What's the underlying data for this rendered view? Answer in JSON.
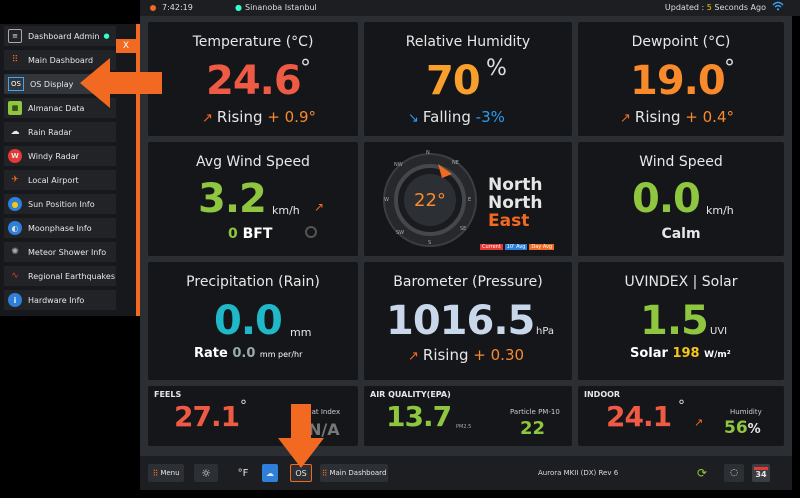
{
  "topbar": {
    "time": "7:42:19",
    "location": "Sinanoba Istanbul",
    "updated_prefix": "Updated : ",
    "updated_seconds": "5",
    "updated_suffix": " Seconds Ago"
  },
  "sidebar": {
    "close_label": "X",
    "items": [
      {
        "label": "Dashboard Admin",
        "icon": "admin-icon"
      },
      {
        "label": "Main Dashboard",
        "icon": "grid-icon"
      },
      {
        "label": "OS Display",
        "icon": "os-icon"
      },
      {
        "label": "Almanac Data",
        "icon": "calendar-icon"
      },
      {
        "label": "Rain Radar",
        "icon": "cloud-rain-icon"
      },
      {
        "label": "Windy Radar",
        "icon": "windy-icon"
      },
      {
        "label": "Local Airport",
        "icon": "airplane-icon"
      },
      {
        "label": "Sun Position Info",
        "icon": "sun-icon"
      },
      {
        "label": "Moonphase Info",
        "icon": "moon-icon"
      },
      {
        "label": "Meteor Shower Info",
        "icon": "meteor-icon"
      },
      {
        "label": "Regional Earthquakes",
        "icon": "earthquake-icon"
      },
      {
        "label": "Hardware Info",
        "icon": "info-icon"
      }
    ]
  },
  "tiles": {
    "temperature": {
      "title": "Temperature (°C)",
      "value": "24.6",
      "unit": "°",
      "trend_label": "Rising",
      "trend_value": "+ 0.9°"
    },
    "humidity": {
      "title": "Relative Humidity",
      "value": "70",
      "unit": "%",
      "trend_label": "Falling",
      "trend_value": "-3%"
    },
    "dewpoint": {
      "title": "Dewpoint (°C)",
      "value": "19.0",
      "unit": "°",
      "trend_label": "Rising",
      "trend_value": "+ 0.4°"
    },
    "avg_wind": {
      "title": "Avg Wind Speed",
      "value": "3.2",
      "unit": "km/h",
      "bft_value": "0",
      "bft_label": "BFT"
    },
    "compass": {
      "direction_deg": "22°",
      "direction_line1": "North",
      "direction_line2": "North",
      "direction_line3": "East",
      "legend": [
        "Current",
        "10' Avg",
        "Day Avg"
      ],
      "cardinals": [
        "N",
        "NE",
        "E",
        "SE",
        "S",
        "SW",
        "W",
        "NW"
      ]
    },
    "wind_speed": {
      "title": "Wind Speed",
      "value": "0.0",
      "unit": "km/h",
      "desc": "Calm"
    },
    "precip": {
      "title": "Precipitation (Rain)",
      "value": "0.0",
      "unit": "mm",
      "rate_label": "Rate",
      "rate_value": "0.0",
      "rate_unit": "mm per/hr"
    },
    "barometer": {
      "title": "Barometer (Pressure)",
      "value": "1016.5",
      "unit": "hPa",
      "trend_label": "Rising",
      "trend_value": "+ 0.30"
    },
    "uv": {
      "title": "UVINDEX | Solar",
      "value": "1.5",
      "unit": "UVI",
      "solar_label": "Solar",
      "solar_value": "198",
      "solar_unit": "W/m²"
    },
    "feels": {
      "title": "FEELS",
      "value": "27.1",
      "unit": "°",
      "heat_label": "Heat Index",
      "heat_value": "N/A"
    },
    "air": {
      "title": "AIR QUALITY(EPA)",
      "value": "13.7",
      "sub": "PM2.5",
      "pm10_label": "Particle PM-10",
      "pm10_value": "22"
    },
    "indoor": {
      "title": "INDOOR",
      "value": "24.1",
      "unit": "°",
      "hum_label": "Humidity",
      "hum_value": "56",
      "hum_unit": "%"
    }
  },
  "bottombar": {
    "menu_label": "Menu",
    "unit_label": "°F",
    "os_label": "OS",
    "main_dashboard_label": "Main Dashboard",
    "version": "Aurora MKII (DX) Rev 6",
    "calendar_day": "34"
  },
  "colors": {
    "accent": "#f26a21",
    "orange": "#f98a2c",
    "green": "#8ec63f",
    "cyan": "#1fb8c9",
    "red": "#ef5a45"
  }
}
